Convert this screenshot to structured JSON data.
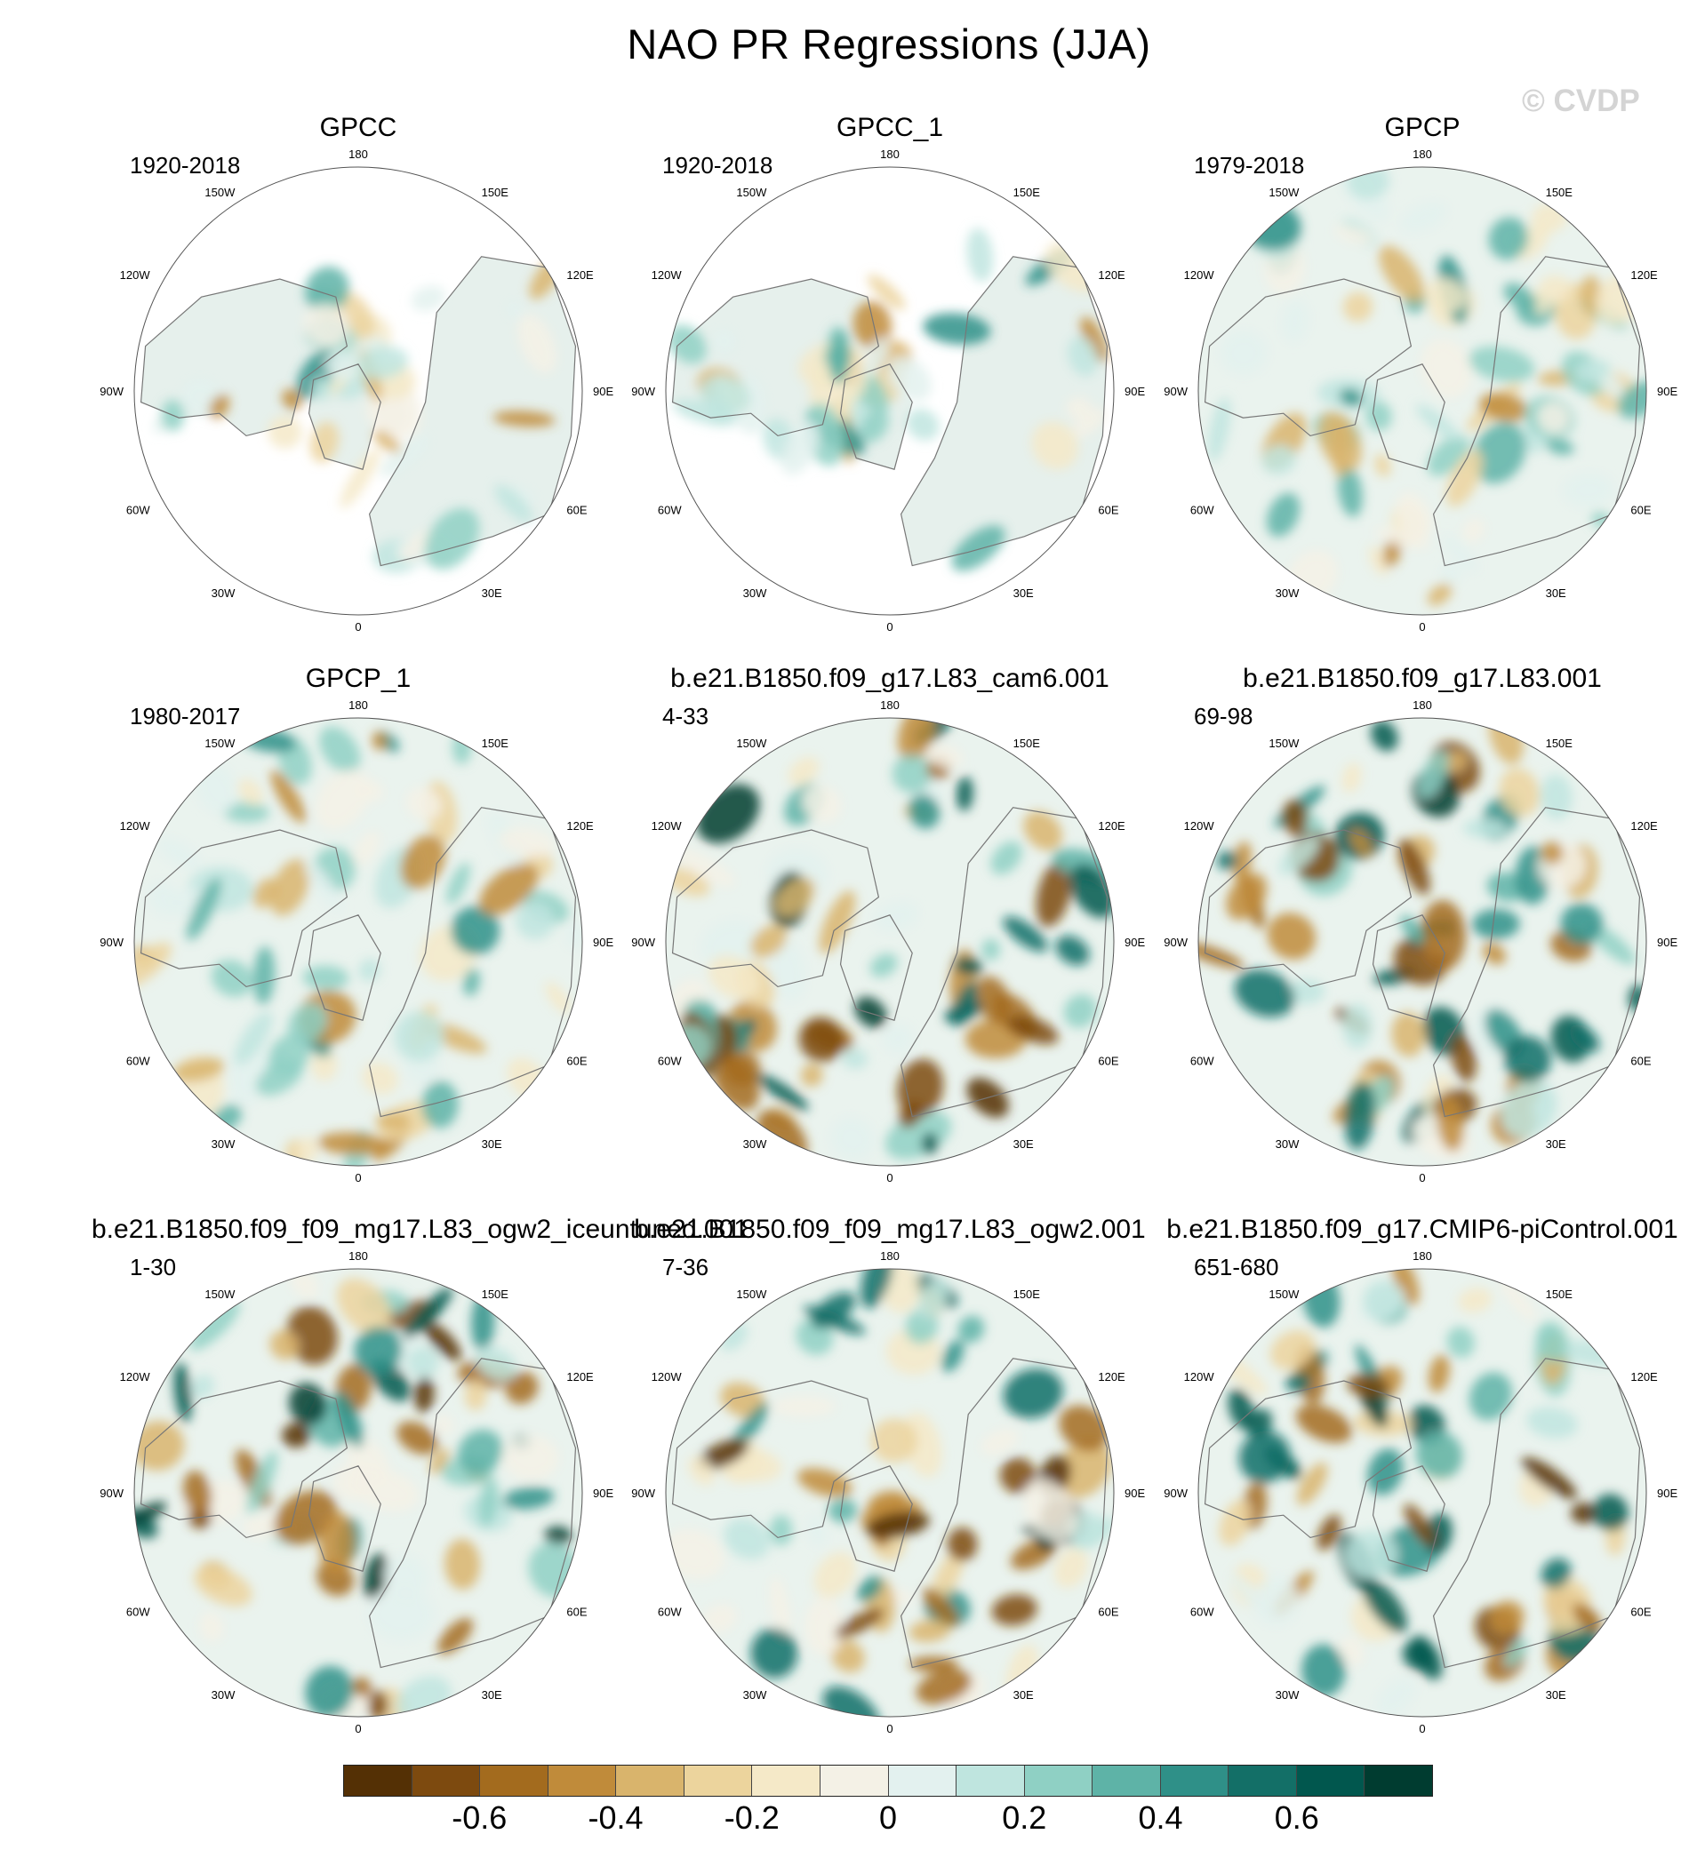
{
  "figure": {
    "title": "NAO PR Regressions (JJA)",
    "watermark": "© CVDP"
  },
  "longitude_labels": {
    "top": "180",
    "bottom": "0",
    "left": "90W",
    "right": "90E",
    "upper_left": "150W",
    "upper_right": "150E",
    "mid_upper_left": "120W",
    "mid_upper_right": "120E",
    "mid_lower_left": "60W",
    "mid_lower_right": "60E",
    "lower_left": "30W",
    "lower_right": "30E"
  },
  "panels": [
    {
      "title": "GPCC",
      "period": "1920-2018",
      "coverage": "land"
    },
    {
      "title": "GPCC_1",
      "period": "1920-2018",
      "coverage": "land"
    },
    {
      "title": "GPCP",
      "period": "1979-2018",
      "coverage": "global"
    },
    {
      "title": "GPCP_1",
      "period": "1980-2017",
      "coverage": "global"
    },
    {
      "title": "b.e21.B1850.f09_g17.L83_cam6.001",
      "period": "4-33",
      "coverage": "global"
    },
    {
      "title": "b.e21.B1850.f09_g17.L83.001",
      "period": "69-98",
      "coverage": "global"
    },
    {
      "title": "b.e21.B1850.f09_f09_mg17.L83_ogw2_iceuntuned.001",
      "period": "1-30",
      "coverage": "global"
    },
    {
      "title": "b.e21.B1850.f09_f09_mg17.L83_ogw2.001",
      "period": "7-36",
      "coverage": "global"
    },
    {
      "title": "b.e21.B1850.f09_g17.CMIP6-piControl.001",
      "period": "651-680",
      "coverage": "global"
    }
  ],
  "colorbar": {
    "colors": [
      "#543005",
      "#7d4a0f",
      "#a36b1e",
      "#c08b3a",
      "#d9b46c",
      "#ecd49d",
      "#f5e9c8",
      "#f4f1e6",
      "#e3f1ef",
      "#bfe5df",
      "#8fd0c4",
      "#5eb3a7",
      "#2f9088",
      "#136f67",
      "#01574e",
      "#003c30"
    ],
    "tick_labels": [
      "-0.6",
      "-0.4",
      "-0.2",
      "0",
      "0.2",
      "0.4",
      "0.6"
    ]
  }
}
